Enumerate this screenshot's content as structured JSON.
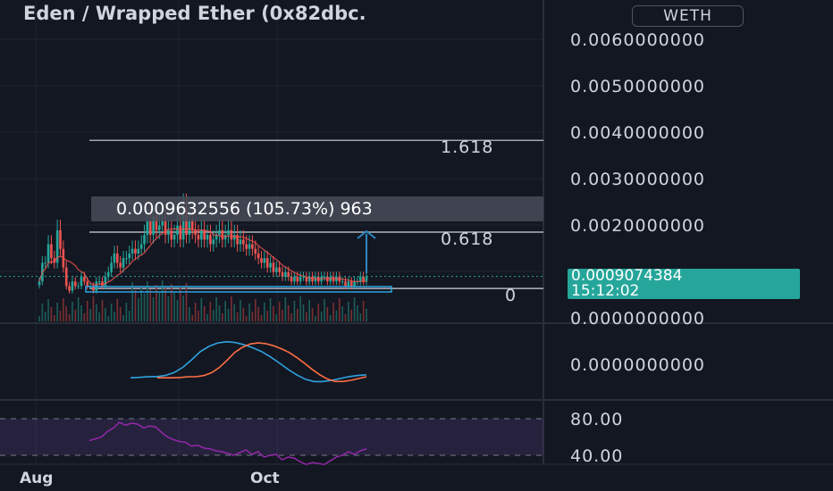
{
  "header": {
    "title": "Eden / Wrapped Ether (0x82dbc.",
    "currency": "WETH"
  },
  "price_badge": {
    "price": "0.0009074384",
    "countdown": "15:12:02"
  },
  "measure": {
    "label": "0.0009632556 (105.73%) 963"
  },
  "colors": {
    "background": "#131722",
    "up": "#26a69a",
    "down": "#ef5350",
    "ma_red": "#ef5350",
    "macd_line": "#2ea3df",
    "signal_line": "#ff7043",
    "rsi": "#9c27b0",
    "measure": "#2e86c1"
  },
  "chart_data": [
    {
      "type": "candlestick",
      "pair": "Eden / WETH",
      "price_axis": [
        "0.0060000000",
        "0.0050000000",
        "0.0040000000",
        "0.0030000000",
        "0.0020000000",
        "0.0000000000"
      ],
      "time_axis": [
        "Aug",
        "Oct"
      ],
      "ylim": [
        0,
        0.006
      ],
      "last_price": 0.0009074384,
      "fib_levels": [
        {
          "label": "1.618",
          "price": 0.00383
        },
        {
          "label": "0.618",
          "price": 0.00186
        },
        {
          "label": "0",
          "price": 0.00065
        }
      ],
      "candles_close": [
        0.0008,
        0.0012,
        0.0012,
        0.0016,
        0.0013,
        0.0012,
        0.0019,
        0.0015,
        0.0011,
        0.0007,
        0.0006,
        0.0008,
        0.0007,
        0.0007,
        0.0009,
        0.0008,
        0.0007,
        0.0007,
        0.0006,
        0.0008,
        0.0008,
        0.0007,
        0.0009,
        0.001,
        0.0012,
        0.0014,
        0.0012,
        0.0011,
        0.0013,
        0.0013,
        0.0014,
        0.0015,
        0.0014,
        0.0015,
        0.0016,
        0.0018,
        0.0021,
        0.0018,
        0.0022,
        0.0019,
        0.002,
        0.0021,
        0.0018,
        0.0019,
        0.0017,
        0.0018,
        0.002,
        0.0017,
        0.0024,
        0.0018,
        0.0021,
        0.0019,
        0.0018,
        0.0017,
        0.0019,
        0.0017,
        0.0018,
        0.0016,
        0.0017,
        0.0018,
        0.0019,
        0.0017,
        0.0018,
        0.0019,
        0.0017,
        0.0018,
        0.0016,
        0.0017,
        0.0016,
        0.0015,
        0.0016,
        0.0015,
        0.0014,
        0.0013,
        0.0012,
        0.0013,
        0.0011,
        0.0012,
        0.001,
        0.0011,
        0.001,
        0.0009,
        0.001,
        0.0009,
        0.0008,
        0.0009,
        0.0008,
        0.0009,
        0.0009,
        0.0008,
        0.0009,
        0.0008,
        0.0009,
        0.0008,
        0.0009,
        0.0009,
        0.0008,
        0.0009,
        0.0008,
        0.0009,
        0.0008,
        0.0008,
        0.0007,
        0.0008,
        0.0007,
        0.0008,
        0.0008,
        0.0009,
        0.0008,
        0.00091
      ]
    },
    {
      "type": "line",
      "name": "",
      "values": [
        0.02,
        0.03,
        0.05,
        0.05,
        0.08,
        0.16,
        0.3,
        0.5,
        0.72,
        0.86,
        0.95,
        0.98,
        0.96,
        0.9,
        0.82,
        0.72,
        0.58,
        0.42,
        0.25,
        0.1,
        -0.02,
        -0.08,
        -0.08,
        -0.05,
        0.0,
        0.05,
        0.08,
        0.1
      ]
    },
    {
      "type": "line",
      "name": "",
      "axis": [
        "80.00",
        "40.00"
      ],
      "ylim": [
        20,
        90
      ],
      "values": [
        56,
        58,
        60,
        66,
        70,
        76,
        73,
        75,
        74,
        70,
        72,
        71,
        65,
        60,
        57,
        55,
        54,
        50,
        51,
        48,
        47,
        45,
        44,
        42,
        40,
        43,
        46,
        41,
        44,
        38,
        40,
        41,
        35,
        38,
        37,
        33,
        30,
        32,
        31,
        30,
        34,
        38,
        40,
        44,
        41,
        45,
        47
      ]
    }
  ]
}
